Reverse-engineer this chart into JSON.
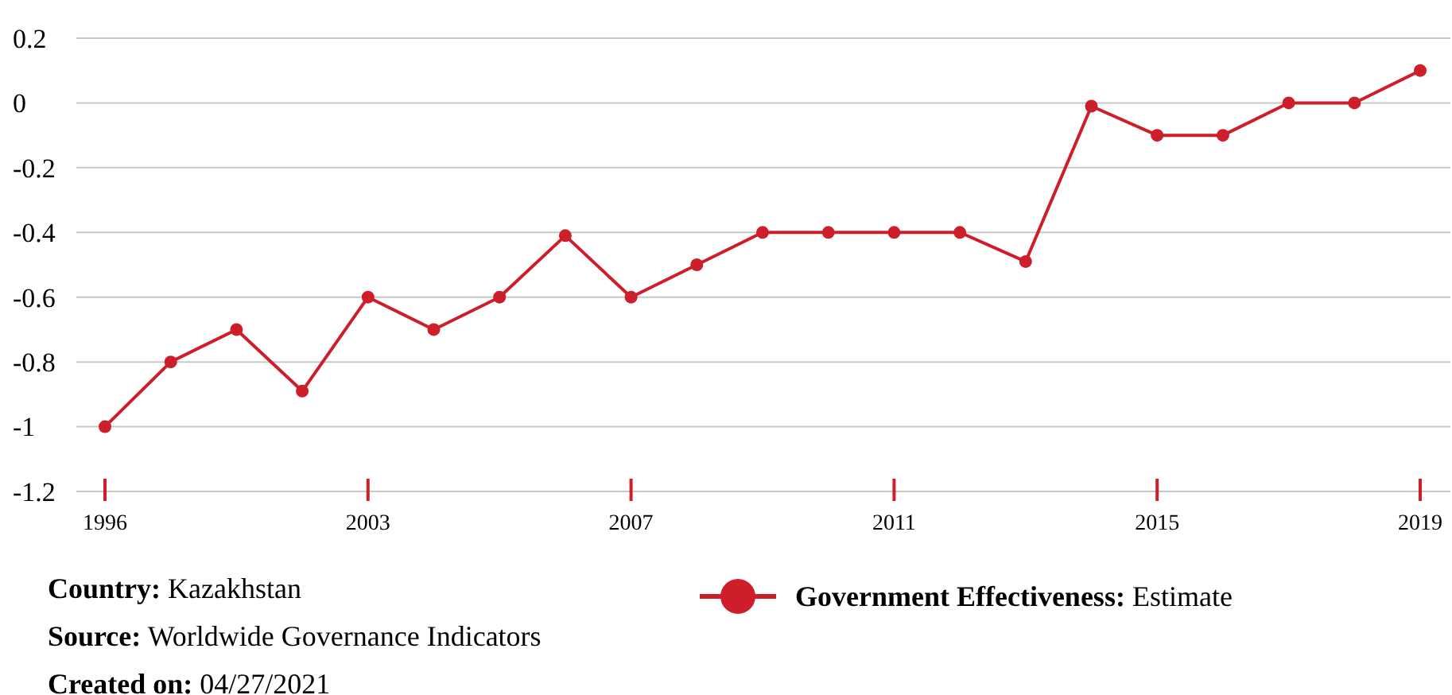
{
  "chart_data": {
    "type": "line",
    "categories": [
      "1996",
      null,
      null,
      null,
      "2003",
      null,
      null,
      null,
      "2007",
      null,
      null,
      null,
      "2011",
      null,
      null,
      null,
      "2015",
      null,
      null,
      null,
      "2019"
    ],
    "series": [
      {
        "name": "Government Effectiveness: Estimate",
        "color": "#cc1f2a",
        "values": [
          -1.0,
          -0.8,
          -0.7,
          -0.89,
          -0.6,
          -0.7,
          -0.6,
          -0.41,
          -0.6,
          -0.5,
          -0.4,
          -0.4,
          -0.4,
          -0.4,
          -0.49,
          -0.01,
          -0.1,
          -0.1,
          0,
          0,
          0.1
        ]
      }
    ],
    "ylim": [
      -1.2,
      0.2
    ],
    "yticks": [
      -1.2,
      -1,
      -0.8,
      -0.6,
      -0.4,
      -0.2,
      0,
      0.2
    ],
    "grid": "y",
    "legend": "bottom",
    "marker": "circle",
    "line_style": "solid",
    "annotations": [
      "Country: Kazakhstan",
      "Source: Worldwide Governance Indicators",
      "Created on: 04/27/2021"
    ]
  }
}
